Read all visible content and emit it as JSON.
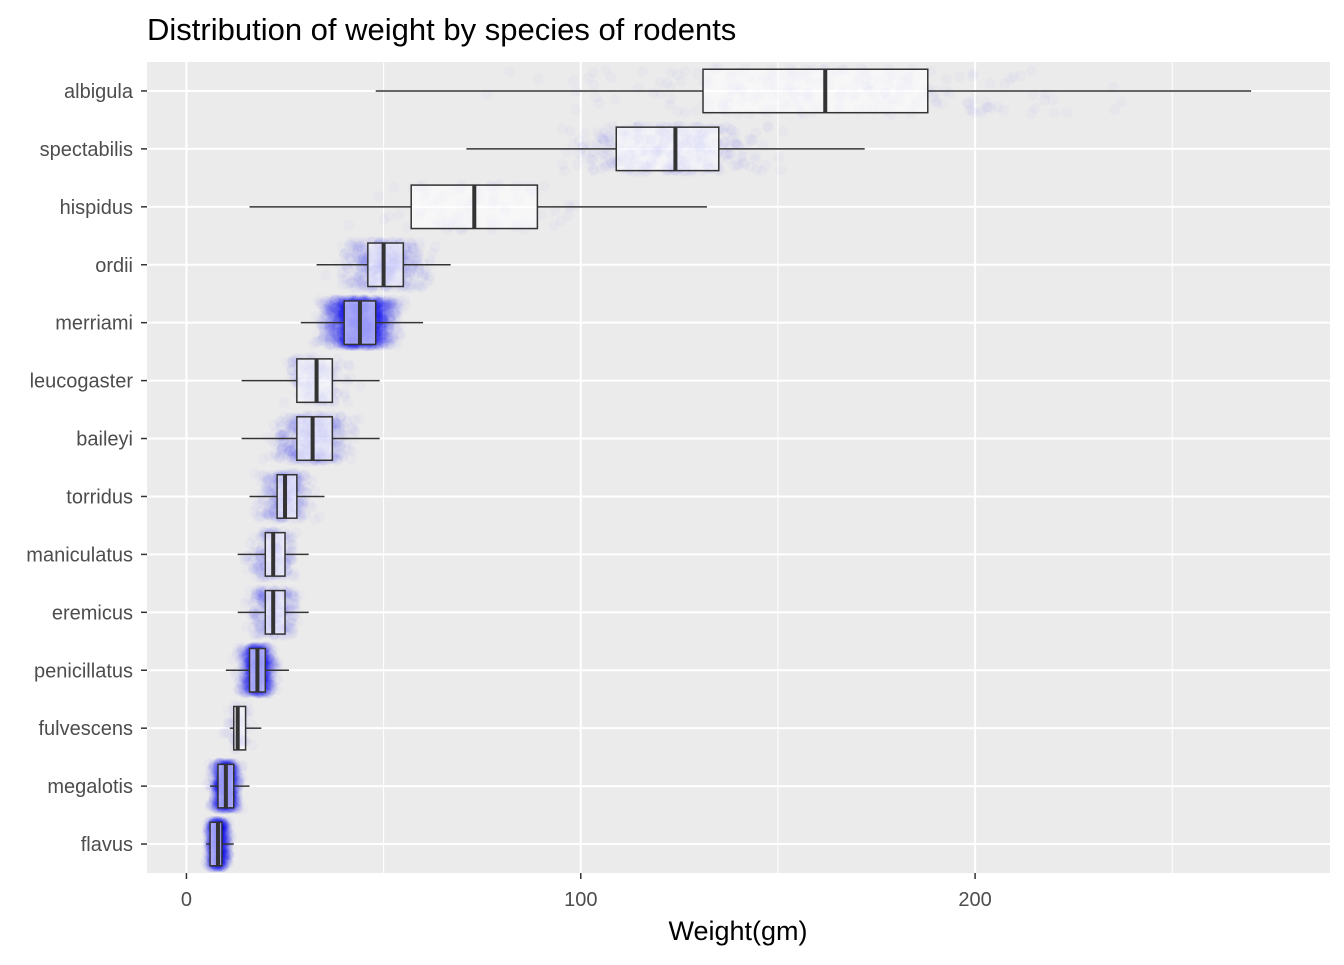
{
  "chart_data": {
    "type": "boxplot",
    "title": "Distribution of weight by species of rodents",
    "xlabel": "Weight(gm)",
    "ylabel": "",
    "xlim": [
      -10,
      290
    ],
    "x_ticks": [
      0,
      100,
      200
    ],
    "grid": true,
    "legend": "none",
    "colors": {
      "panel_background": "#EBEBEB",
      "grid_line": "#FFFFFF",
      "point_fill": "#0000FF",
      "box_outline": "#333333",
      "box_fill": "#FFFFFF",
      "text": "#4D4D4D",
      "title": "#000000"
    },
    "categories": [
      "albigula",
      "spectabilis",
      "hispidus",
      "ordii",
      "merriami",
      "leucogaster",
      "baileyi",
      "torridus",
      "maniculatus",
      "eremicus",
      "penicillatus",
      "fulvescens",
      "megalotis",
      "flavus"
    ],
    "boxes": [
      {
        "species": "albigula",
        "whisker_low": 48,
        "q1": 131,
        "median": 162,
        "q3": 188,
        "whisker_high": 270
      },
      {
        "species": "spectabilis",
        "whisker_low": 71,
        "q1": 109,
        "median": 124,
        "q3": 135,
        "whisker_high": 172
      },
      {
        "species": "hispidus",
        "whisker_low": 16,
        "q1": 57,
        "median": 73,
        "q3": 89,
        "whisker_high": 132
      },
      {
        "species": "ordii",
        "whisker_low": 33,
        "q1": 46,
        "median": 50,
        "q3": 55,
        "whisker_high": 67
      },
      {
        "species": "merriami",
        "whisker_low": 29,
        "q1": 40,
        "median": 44,
        "q3": 48,
        "whisker_high": 60
      },
      {
        "species": "leucogaster",
        "whisker_low": 14,
        "q1": 28,
        "median": 33,
        "q3": 37,
        "whisker_high": 49
      },
      {
        "species": "baileyi",
        "whisker_low": 14,
        "q1": 28,
        "median": 32,
        "q3": 37,
        "whisker_high": 49
      },
      {
        "species": "torridus",
        "whisker_low": 16,
        "q1": 23,
        "median": 25,
        "q3": 28,
        "whisker_high": 35
      },
      {
        "species": "maniculatus",
        "whisker_low": 13,
        "q1": 20,
        "median": 22,
        "q3": 25,
        "whisker_high": 31
      },
      {
        "species": "eremicus",
        "whisker_low": 13,
        "q1": 20,
        "median": 22,
        "q3": 25,
        "whisker_high": 31
      },
      {
        "species": "penicillatus",
        "whisker_low": 10,
        "q1": 16,
        "median": 18,
        "q3": 20,
        "whisker_high": 26
      },
      {
        "species": "fulvescens",
        "whisker_low": 11,
        "q1": 12,
        "median": 13,
        "q3": 15,
        "whisker_high": 19
      },
      {
        "species": "megalotis",
        "whisker_low": 6,
        "q1": 8,
        "median": 10,
        "q3": 12,
        "whisker_high": 16
      },
      {
        "species": "flavus",
        "whisker_low": 5,
        "q1": 6,
        "median": 8,
        "q3": 9,
        "whisker_high": 12
      }
    ],
    "jitter_points": [
      {
        "species": "albigula",
        "center": 160,
        "spread": 55,
        "count": 220
      },
      {
        "species": "spectabilis",
        "center": 122,
        "spread": 22,
        "count": 420
      },
      {
        "species": "hispidus",
        "center": 73,
        "spread": 25,
        "count": 80
      },
      {
        "species": "ordii",
        "center": 50,
        "spread": 10,
        "count": 500
      },
      {
        "species": "merriami",
        "center": 44,
        "spread": 8,
        "count": 2200
      },
      {
        "species": "leucogaster",
        "center": 33,
        "spread": 8,
        "count": 170
      },
      {
        "species": "baileyi",
        "center": 32,
        "spread": 9,
        "count": 450
      },
      {
        "species": "torridus",
        "center": 25,
        "spread": 6,
        "count": 320
      },
      {
        "species": "maniculatus",
        "center": 22,
        "spread": 6,
        "count": 220
      },
      {
        "species": "eremicus",
        "center": 22,
        "spread": 6,
        "count": 300
      },
      {
        "species": "penicillatus",
        "center": 18,
        "spread": 4,
        "count": 1000
      },
      {
        "species": "fulvescens",
        "center": 13,
        "spread": 3,
        "count": 60
      },
      {
        "species": "megalotis",
        "center": 10,
        "spread": 3,
        "count": 1100
      },
      {
        "species": "flavus",
        "center": 8,
        "spread": 2.5,
        "count": 900
      }
    ]
  }
}
